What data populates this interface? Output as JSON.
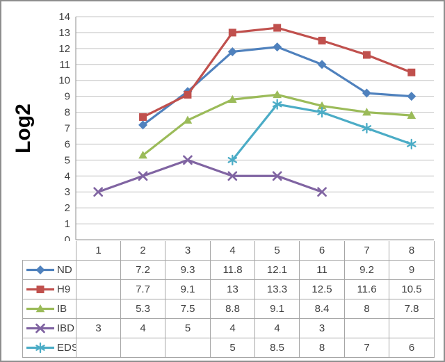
{
  "chart_data": {
    "type": "line",
    "title": "",
    "ylabel": "Log2",
    "xlabel": "",
    "categories": [
      "1",
      "2",
      "3",
      "4",
      "5",
      "6",
      "7",
      "8"
    ],
    "y_axis": {
      "min": 0,
      "max": 14,
      "step": 1,
      "ticks": [
        "0",
        "1",
        "2",
        "3",
        "4",
        "5",
        "6",
        "7",
        "8",
        "9",
        "10",
        "11",
        "12",
        "13",
        "14"
      ]
    },
    "grid": true,
    "legend_position": "data-table-left-keys",
    "series": [
      {
        "name": "ND",
        "color": "#4F81BD",
        "marker": "diamond",
        "values": [
          null,
          7.2,
          9.3,
          11.8,
          12.1,
          11,
          9.2,
          9
        ]
      },
      {
        "name": "H9",
        "color": "#C0504D",
        "marker": "square",
        "values": [
          null,
          7.7,
          9.1,
          13,
          13.3,
          12.5,
          11.6,
          10.5
        ]
      },
      {
        "name": "IB",
        "color": "#9BBB59",
        "marker": "triangle",
        "values": [
          null,
          5.3,
          7.5,
          8.8,
          9.1,
          8.4,
          8,
          7.8
        ]
      },
      {
        "name": "IBD",
        "color": "#8064A2",
        "marker": "x",
        "values": [
          3,
          4,
          5,
          4,
          4,
          3,
          null,
          null
        ]
      },
      {
        "name": "EDS",
        "color": "#4BACC6",
        "marker": "asterisk",
        "values": [
          null,
          null,
          null,
          5,
          8.5,
          8,
          7,
          6
        ]
      }
    ],
    "colors": {
      "gridline": "#c6c6c6",
      "axis": "#8e8e8e",
      "table_border": "#a6a6a6",
      "tick_text": "#3f3f3f",
      "axis_title_text": "#000000",
      "background": "#ffffff",
      "frame_border": "#8e8e8e"
    }
  }
}
